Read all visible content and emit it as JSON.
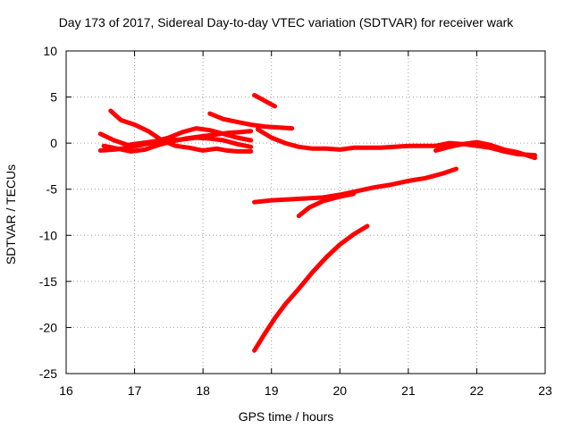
{
  "chart_data": {
    "type": "scatter",
    "title": "Day 173 of 2017, Sidereal Day-to-day VTEC variation (SDTVAR) for receiver wark",
    "xlabel": "GPS time / hours",
    "ylabel": "SDTVAR / TECUs",
    "xlim": [
      16,
      23
    ],
    "ylim": [
      -25,
      10
    ],
    "xticks": [
      "16",
      "17",
      "18",
      "19",
      "20",
      "21",
      "22",
      "23"
    ],
    "yticks": [
      "10",
      "5",
      "0",
      "-5",
      "-10",
      "-15",
      "-20",
      "-25"
    ],
    "grid": true,
    "marker_color": "#ff0000",
    "series": [
      {
        "x": [
          16.65,
          16.8,
          17.0,
          17.2,
          17.4,
          17.6,
          17.8,
          18.0,
          18.2,
          18.35,
          18.5,
          18.7
        ],
        "y": [
          3.5,
          2.5,
          2.0,
          1.3,
          0.3,
          -0.3,
          -0.5,
          -0.8,
          -0.6,
          -0.8,
          -0.9,
          -0.9
        ]
      },
      {
        "x": [
          16.5,
          16.7,
          16.9,
          17.1,
          17.3,
          17.5,
          17.7,
          17.9,
          18.1,
          18.3,
          18.5,
          18.7
        ],
        "y": [
          1.0,
          0.3,
          -0.2,
          0.0,
          0.2,
          0.6,
          1.2,
          1.6,
          1.4,
          1.0,
          0.6,
          0.3
        ]
      },
      {
        "x": [
          16.5,
          16.7,
          16.9,
          17.1,
          17.3,
          17.5,
          17.7,
          17.9,
          18.1,
          18.3,
          18.5,
          18.7
        ],
        "y": [
          -0.8,
          -0.7,
          -0.5,
          -0.2,
          0.1,
          0.3,
          0.4,
          0.6,
          0.5,
          0.3,
          -0.1,
          -0.4
        ]
      },
      {
        "x": [
          16.55,
          16.75,
          16.95,
          17.15,
          17.35,
          17.55,
          17.75,
          17.95,
          18.15,
          18.35,
          18.55,
          18.7
        ],
        "y": [
          -0.3,
          -0.6,
          -0.9,
          -0.7,
          -0.2,
          0.2,
          0.5,
          0.7,
          0.9,
          1.1,
          1.2,
          1.3
        ]
      },
      {
        "x": [
          18.1,
          18.3,
          18.5,
          18.7,
          18.9,
          19.1,
          19.3
        ],
        "y": [
          3.2,
          2.6,
          2.3,
          2.0,
          1.8,
          1.7,
          1.6
        ]
      },
      {
        "x": [
          18.75,
          18.85,
          18.95,
          19.05
        ],
        "y": [
          5.2,
          4.8,
          4.4,
          4.0
        ]
      },
      {
        "x": [
          18.8,
          19.0,
          19.2,
          19.4,
          19.6,
          19.8,
          20.0,
          20.2,
          20.4,
          20.6,
          20.8,
          21.0,
          21.2,
          21.4,
          21.6,
          21.8,
          22.0,
          22.2,
          22.4,
          22.6,
          22.85
        ],
        "y": [
          1.5,
          0.6,
          0.0,
          -0.4,
          -0.6,
          -0.6,
          -0.7,
          -0.5,
          -0.5,
          -0.5,
          -0.4,
          -0.3,
          -0.3,
          -0.3,
          0.0,
          -0.1,
          -0.3,
          -0.5,
          -0.9,
          -1.2,
          -1.3
        ]
      },
      {
        "x": [
          21.4,
          21.6,
          21.8,
          22.0,
          22.2,
          22.4,
          22.6,
          22.85
        ],
        "y": [
          -0.8,
          -0.4,
          -0.1,
          0.1,
          -0.2,
          -0.7,
          -1.0,
          -1.6
        ]
      },
      {
        "x": [
          18.75,
          19.0,
          19.25,
          19.5,
          19.75,
          20.0,
          20.25,
          20.5,
          20.75,
          21.0,
          21.25,
          21.5,
          21.7
        ],
        "y": [
          -6.4,
          -6.2,
          -6.1,
          -6.0,
          -5.9,
          -5.6,
          -5.2,
          -4.8,
          -4.5,
          -4.1,
          -3.8,
          -3.3,
          -2.8
        ]
      },
      {
        "x": [
          19.4,
          19.55,
          19.75,
          20.0,
          20.2
        ],
        "y": [
          -7.9,
          -7.0,
          -6.3,
          -5.8,
          -5.5
        ]
      },
      {
        "x": [
          18.75,
          18.9,
          19.05,
          19.2,
          19.4,
          19.6,
          19.8,
          20.0,
          20.2,
          20.4
        ],
        "y": [
          -22.5,
          -20.7,
          -19.0,
          -17.5,
          -15.8,
          -14.0,
          -12.4,
          -11.0,
          -9.9,
          -9.0
        ]
      }
    ]
  }
}
